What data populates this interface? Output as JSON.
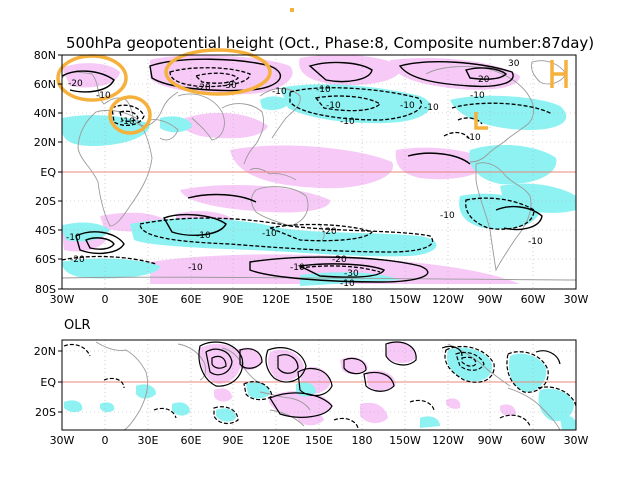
{
  "title": "500hPa geopotential height (Oct., Phase:8, Composite number:87day)",
  "olr_label": "OLR",
  "top_map": {
    "lat_labels": [
      "80N",
      "60N",
      "40N",
      "20N",
      "EQ",
      "20S",
      "40S",
      "60S",
      "80S"
    ],
    "lon_labels": [
      "30W",
      "0",
      "30E",
      "60E",
      "90E",
      "120E",
      "150E",
      "180",
      "150W",
      "120W",
      "90W",
      "60W",
      "30W"
    ],
    "contour_labels": [
      {
        "text": "-20"
      },
      {
        "text": "-10"
      },
      {
        "text": "-20"
      },
      {
        "text": "-30"
      },
      {
        "text": "-10"
      },
      {
        "text": "-10"
      },
      {
        "text": "-10"
      },
      {
        "text": "-10"
      },
      {
        "text": "-10"
      },
      {
        "text": "-10"
      },
      {
        "text": "20"
      },
      {
        "text": "30"
      },
      {
        "text": "-10"
      },
      {
        "text": "-10"
      },
      {
        "text": "-10"
      },
      {
        "text": "-20"
      },
      {
        "text": "-10"
      },
      {
        "text": "-10"
      },
      {
        "text": "-20"
      },
      {
        "text": "-10"
      },
      {
        "text": "-10"
      },
      {
        "text": "-10"
      },
      {
        "text": "-30"
      },
      {
        "text": "-10"
      },
      {
        "text": "-20"
      },
      {
        "text": "-10"
      },
      {
        "text": "-10"
      }
    ]
  },
  "bottom_map": {
    "lat_labels": [
      "20N",
      "EQ",
      "20S"
    ],
    "lon_labels": [
      "30W",
      "0",
      "30E",
      "60E",
      "90E",
      "120E",
      "150E",
      "180",
      "150W",
      "120W",
      "90W",
      "60W",
      "30W"
    ]
  },
  "colors": {
    "positive_shade": "#f7c9f7",
    "negative_shade": "#8ef2f2",
    "highlight": "#f6b03c",
    "equator": "#e9887a",
    "coast": "#9a9a9a"
  }
}
